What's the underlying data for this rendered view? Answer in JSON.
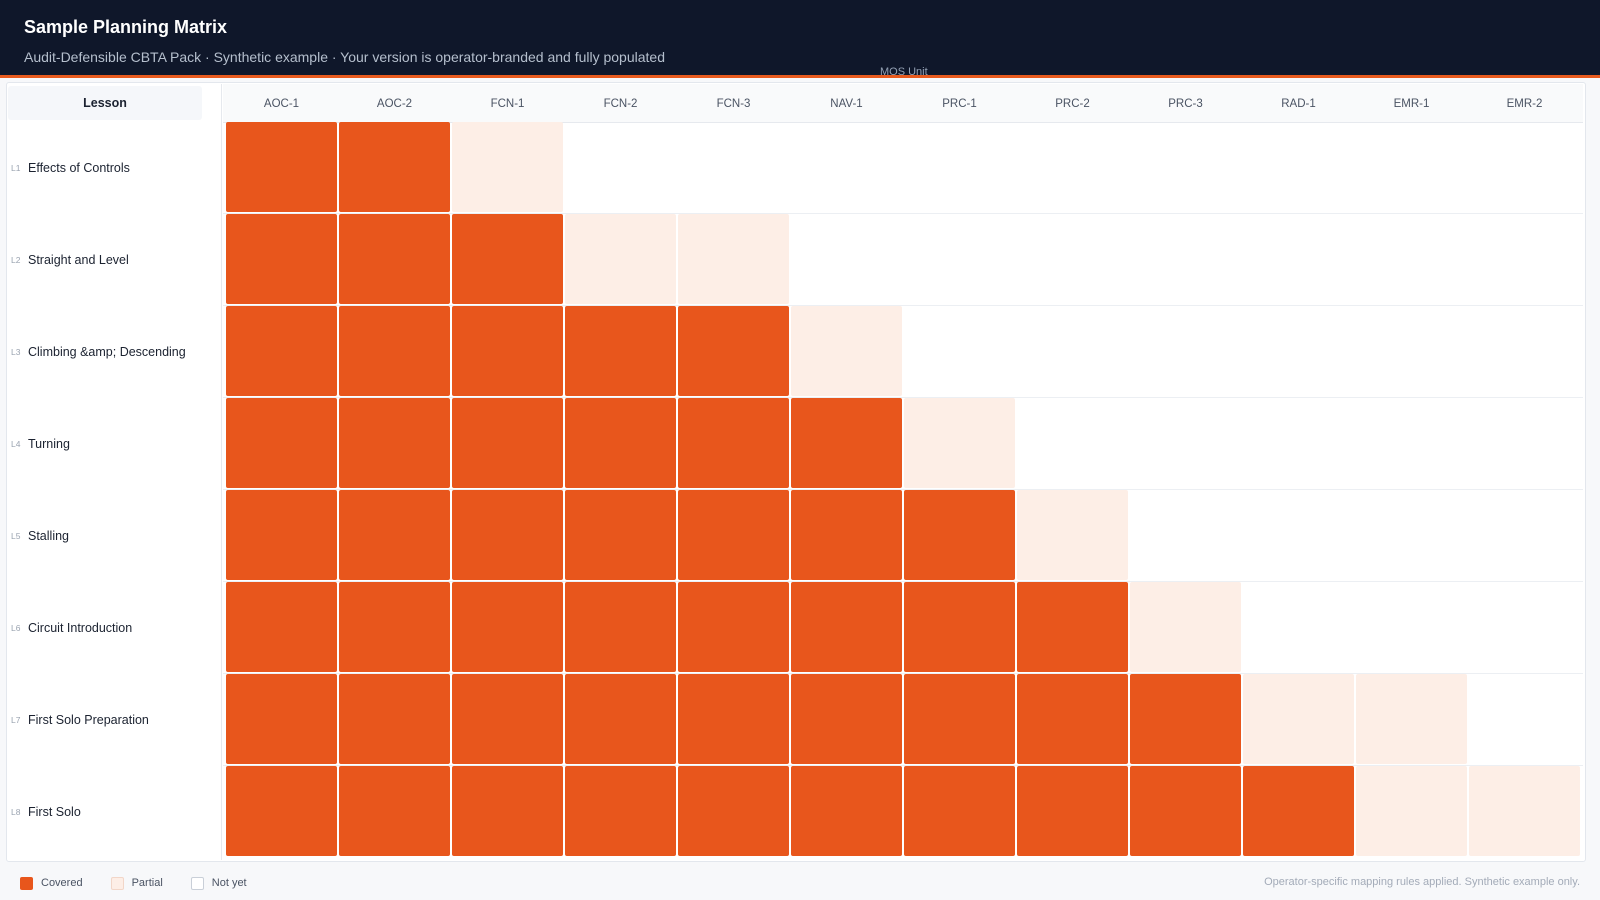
{
  "header": {
    "title": "Sample Planning Matrix",
    "subtitle": "Audit-Defensible CBTA Pack · Synthetic example · Your version is operator-branded and fully populated",
    "axis_caption": "MOS Unit"
  },
  "colors": {
    "covered": "#e8561c",
    "partial": "#fdeee6",
    "not_yet": "#ffffff",
    "header_bg": "#0f172a",
    "accent": "#e85a1d"
  },
  "matrix": {
    "lesson_header": "Lesson",
    "columns": [
      "AOC-1",
      "AOC-2",
      "FCN-1",
      "FCN-2",
      "FCN-3",
      "NAV-1",
      "PRC-1",
      "PRC-2",
      "PRC-3",
      "RAD-1",
      "EMR-1",
      "EMR-2"
    ],
    "rows": [
      {
        "code": "L1",
        "name": "Effects of Controls",
        "cells": [
          "covered",
          "covered",
          "partial",
          "none",
          "none",
          "none",
          "none",
          "none",
          "none",
          "none",
          "none",
          "none"
        ]
      },
      {
        "code": "L2",
        "name": "Straight and Level",
        "cells": [
          "covered",
          "covered",
          "covered",
          "partial",
          "partial",
          "none",
          "none",
          "none",
          "none",
          "none",
          "none",
          "none"
        ]
      },
      {
        "code": "L3",
        "name": "Climbing &amp; Descending",
        "cells": [
          "covered",
          "covered",
          "covered",
          "covered",
          "covered",
          "partial",
          "none",
          "none",
          "none",
          "none",
          "none",
          "none"
        ]
      },
      {
        "code": "L4",
        "name": "Turning",
        "cells": [
          "covered",
          "covered",
          "covered",
          "covered",
          "covered",
          "covered",
          "partial",
          "none",
          "none",
          "none",
          "none",
          "none"
        ]
      },
      {
        "code": "L5",
        "name": "Stalling",
        "cells": [
          "covered",
          "covered",
          "covered",
          "covered",
          "covered",
          "covered",
          "covered",
          "partial",
          "none",
          "none",
          "none",
          "none"
        ]
      },
      {
        "code": "L6",
        "name": "Circuit Introduction",
        "cells": [
          "covered",
          "covered",
          "covered",
          "covered",
          "covered",
          "covered",
          "covered",
          "covered",
          "partial",
          "none",
          "none",
          "none"
        ]
      },
      {
        "code": "L7",
        "name": "First Solo Preparation",
        "cells": [
          "covered",
          "covered",
          "covered",
          "covered",
          "covered",
          "covered",
          "covered",
          "covered",
          "covered",
          "partial",
          "partial",
          "none"
        ]
      },
      {
        "code": "L8",
        "name": "First Solo",
        "cells": [
          "covered",
          "covered",
          "covered",
          "covered",
          "covered",
          "covered",
          "covered",
          "covered",
          "covered",
          "covered",
          "partial",
          "partial"
        ]
      }
    ]
  },
  "legend": {
    "covered": "Covered",
    "partial": "Partial",
    "not_yet": "Not yet"
  },
  "footnote": "Operator-specific mapping rules applied. Synthetic example only."
}
